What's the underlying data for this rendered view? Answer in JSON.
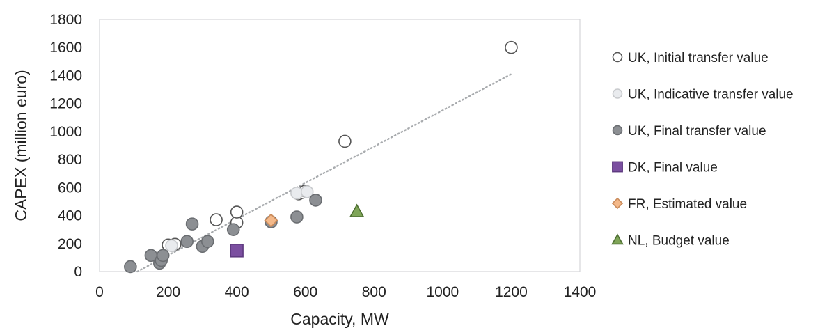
{
  "chart_data": {
    "type": "scatter",
    "title": "",
    "xlabel": "Capacity, MW",
    "ylabel": "CAPEX (million euro)",
    "xlim": [
      0,
      1400
    ],
    "ylim": [
      0,
      1800
    ],
    "x_ticks": [
      0,
      200,
      400,
      600,
      800,
      1000,
      1200,
      1400
    ],
    "y_ticks": [
      0,
      200,
      400,
      600,
      800,
      1000,
      1200,
      1400,
      1600,
      1800
    ],
    "grid": false,
    "legend_position": "right",
    "series": [
      {
        "name": "UK, Initial transfer value",
        "marker": "circle",
        "fill": "#ffffff",
        "stroke": "#555555",
        "points": [
          [
            200,
            190
          ],
          [
            220,
            195
          ],
          [
            340,
            370
          ],
          [
            400,
            350
          ],
          [
            400,
            425
          ],
          [
            580,
            555
          ],
          [
            590,
            565
          ],
          [
            600,
            575
          ],
          [
            715,
            930
          ],
          [
            1200,
            1600
          ]
        ]
      },
      {
        "name": "UK, Indicative transfer value",
        "marker": "circle",
        "fill": "#e9ebee",
        "stroke": "#c8cacd",
        "points": [
          [
            210,
            185
          ],
          [
            575,
            560
          ],
          [
            605,
            570
          ]
        ]
      },
      {
        "name": "UK, Final transfer value",
        "marker": "circle",
        "fill": "#8c8f93",
        "stroke": "#6a6d71",
        "points": [
          [
            90,
            35
          ],
          [
            150,
            115
          ],
          [
            175,
            60
          ],
          [
            180,
            80
          ],
          [
            185,
            115
          ],
          [
            255,
            215
          ],
          [
            270,
            340
          ],
          [
            300,
            180
          ],
          [
            315,
            215
          ],
          [
            390,
            300
          ],
          [
            500,
            355
          ],
          [
            575,
            390
          ],
          [
            630,
            510
          ]
        ]
      },
      {
        "name": "DK, Final value",
        "marker": "square",
        "fill": "#7b4fa0",
        "stroke": "#5e3a80",
        "points": [
          [
            400,
            150
          ]
        ]
      },
      {
        "name": "FR, Estimated value",
        "marker": "diamond",
        "fill": "#f4b98a",
        "stroke": "#c98a5a",
        "points": [
          [
            500,
            365
          ]
        ]
      },
      {
        "name": "NL, Budget value",
        "marker": "triangle",
        "fill": "#7fa558",
        "stroke": "#4e6f32",
        "points": [
          [
            750,
            430
          ]
        ]
      }
    ],
    "trendline": {
      "style": "dotted",
      "color": "#a8abae",
      "points": [
        [
          110,
          0
        ],
        [
          1200,
          1410
        ]
      ]
    }
  }
}
